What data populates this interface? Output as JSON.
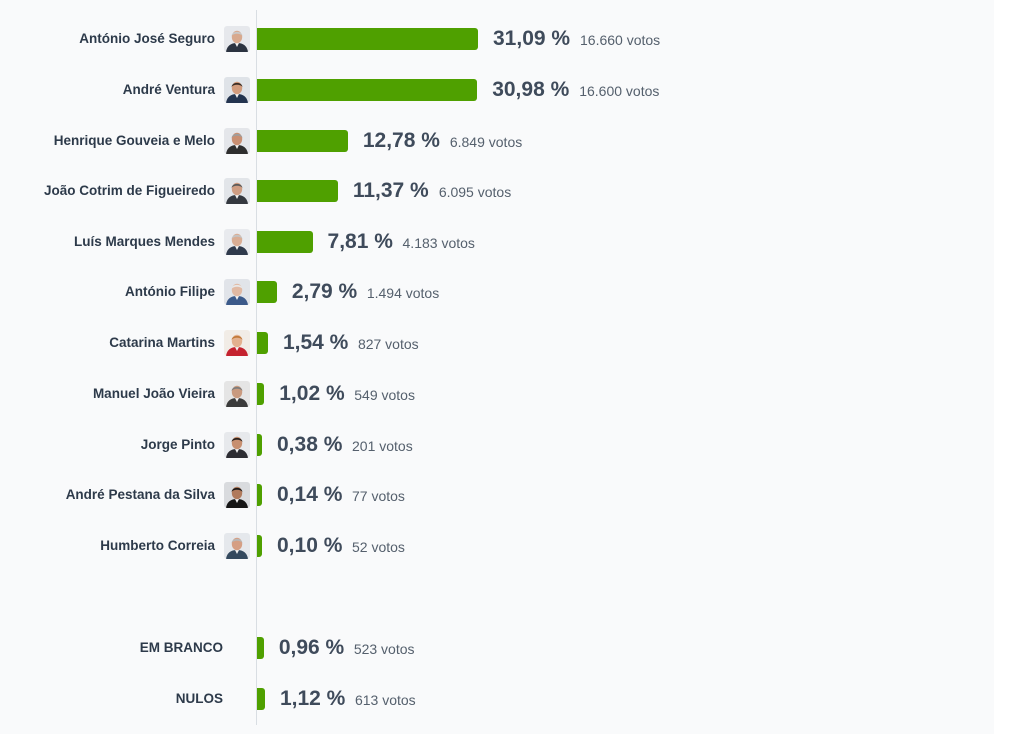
{
  "chart_data": {
    "type": "bar",
    "orientation": "horizontal",
    "title": "",
    "xlabel": "",
    "ylabel": "",
    "categories": [
      "António José Seguro",
      "André Ventura",
      "Henrique Gouveia e Melo",
      "João Cotrim de Figueiredo",
      "Luís Marques Mendes",
      "António Filipe",
      "Catarina Martins",
      "Manuel João Vieira",
      "Jorge Pinto",
      "André Pestana da Silva",
      "Humberto Correia",
      "EM BRANCO",
      "NULOS"
    ],
    "values": [
      31.09,
      30.98,
      12.78,
      11.37,
      7.81,
      2.79,
      1.54,
      1.02,
      0.38,
      0.14,
      0.1,
      0.96,
      1.12
    ],
    "value_labels": [
      "31,09 %",
      "30,98 %",
      "12,78 %",
      "11,37 %",
      "7,81 %",
      "2,79 %",
      "1,54 %",
      "1,02 %",
      "0,38 %",
      "0,14 %",
      "0,10 %",
      "0,96 %",
      "1,12 %"
    ],
    "votes": [
      16660,
      16600,
      6849,
      6095,
      4183,
      1494,
      827,
      549,
      201,
      77,
      52,
      523,
      613
    ],
    "vote_labels": [
      "16.660 votos",
      "16.600 votos",
      "6.849 votos",
      "6.095 votos",
      "4.183 votos",
      "1.494 votos",
      "827 votos",
      "549 votos",
      "201 votos",
      "77 votos",
      "52 votos",
      "523 votos",
      "613 votos"
    ],
    "has_photo": [
      true,
      true,
      true,
      true,
      true,
      true,
      true,
      true,
      true,
      true,
      true,
      false,
      false
    ],
    "photo_colors": [
      {
        "bg": "#e6e8ec",
        "skin": "#d8a98e",
        "hair": "#c9c9c9",
        "suit": "#2b3340"
      },
      {
        "bg": "#dfe3e8",
        "skin": "#d29c7d",
        "hair": "#3a2d25",
        "suit": "#23344f"
      },
      {
        "bg": "#e4e6ea",
        "skin": "#c98f72",
        "hair": "#9e9e9e",
        "suit": "#2e2e2e"
      },
      {
        "bg": "#e2e5e9",
        "skin": "#cf9d82",
        "hair": "#5a5a5a",
        "suit": "#34383f"
      },
      {
        "bg": "#e8eaee",
        "skin": "#d9ad94",
        "hair": "#c4c4c4",
        "suit": "#2f3a4c"
      },
      {
        "bg": "#e1e4e9",
        "skin": "#e1b9a3",
        "hair": "#e8e8e8",
        "suit": "#3c5a8a"
      },
      {
        "bg": "#f1ece6",
        "skin": "#e3b18f",
        "hair": "#c27a3a",
        "suit": "#c4222f"
      },
      {
        "bg": "#e5e5e5",
        "skin": "#c99a7f",
        "hair": "#7c7c7c",
        "suit": "#3b3b3b"
      },
      {
        "bg": "#e7e9ec",
        "skin": "#c78f70",
        "hair": "#2a211c",
        "suit": "#2d2d33"
      },
      {
        "bg": "#d9dbde",
        "skin": "#b07a5c",
        "hair": "#1e1a18",
        "suit": "#161616"
      },
      {
        "bg": "#e5e8ec",
        "skin": "#d59f84",
        "hair": "#b8b8b8",
        "suit": "#34495e"
      }
    ],
    "bar_color": "#4fa000",
    "xlim": [
      0,
      31.09
    ]
  }
}
